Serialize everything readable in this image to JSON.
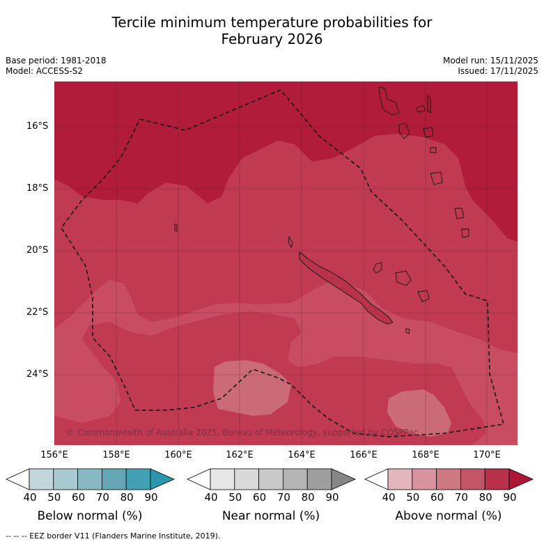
{
  "title_line1": "Tercile minimum temperature probabilities for",
  "title_line2": "February 2026",
  "meta": {
    "base_period": "Base period: 1981-2018",
    "model": "Model: ACCESS-S2",
    "model_run": "Model run: 15/11/2025",
    "issued": "Issued: 17/11/2025"
  },
  "lat_labels": [
    "16°S",
    "18°S",
    "20°S",
    "22°S",
    "24°S"
  ],
  "lon_labels": [
    "156°E",
    "158°E",
    "160°E",
    "162°E",
    "164°E",
    "166°E",
    "168°E",
    "170°E"
  ],
  "copyright": "© Commonwealth of Australia 2025, Bureau of Meteorology, supported by COSPPac",
  "colorbars": {
    "below": {
      "title": "Below normal (%)",
      "ticks": [
        "40",
        "50",
        "60",
        "70",
        "80",
        "90"
      ],
      "colors": [
        "#ffffff",
        "#c2d6dc",
        "#a7c9cf",
        "#88b8c2",
        "#65a7b5",
        "#42a0b2",
        "#2b97ae"
      ]
    },
    "near": {
      "title": "Near normal (%)",
      "ticks": [
        "40",
        "50",
        "60",
        "70",
        "80",
        "90"
      ],
      "colors": [
        "#ffffff",
        "#e6e6e6",
        "#d9d9d9",
        "#c9c9c9",
        "#b4b4b4",
        "#9e9e9e",
        "#868686"
      ]
    },
    "above": {
      "title": "Above normal (%)",
      "ticks": [
        "40",
        "50",
        "60",
        "70",
        "80",
        "90"
      ],
      "colors": [
        "#ffffff",
        "#e3b5bd",
        "#d8939e",
        "#cd7983",
        "#c25567",
        "#b8324b",
        "#ad1736"
      ]
    }
  },
  "eez_note": "-- -- -- EEZ border V11 (Flanders Marine Institute, 2019)."
}
